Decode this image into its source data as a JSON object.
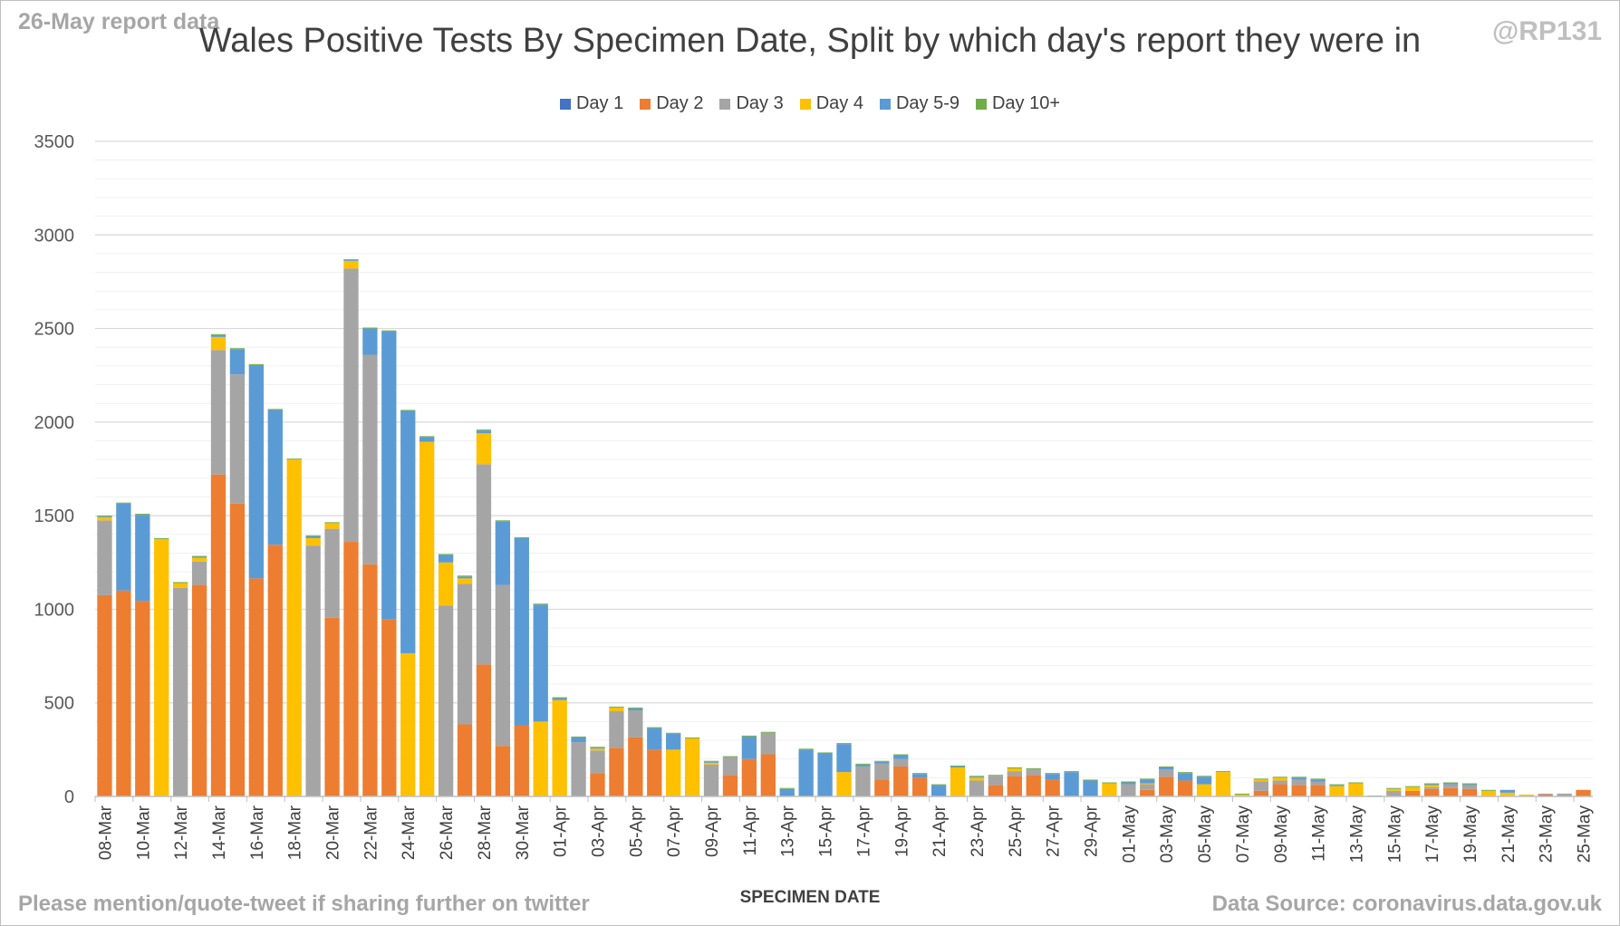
{
  "header": {
    "report_label": "26-May report data",
    "handle": "@RP131"
  },
  "footer": {
    "share_note": "Please mention/quote-tweet if sharing further on twitter",
    "source": "Data Source: coronavirus.data.gov.uk"
  },
  "chart_data": {
    "type": "bar",
    "stacked": true,
    "title": "Wales Positive Tests By Specimen Date, Split by which day's report they were in",
    "xlabel": "SPECIMEN DATE",
    "ylabel": "",
    "ylim": [
      0,
      3500
    ],
    "yticks": [
      0,
      500,
      1000,
      1500,
      2000,
      2500,
      3000,
      3500
    ],
    "grid": true,
    "legend_position": "top",
    "x_tick_labels": [
      "08-Mar",
      "10-Mar",
      "12-Mar",
      "14-Mar",
      "16-Mar",
      "18-Mar",
      "20-Mar",
      "22-Mar",
      "24-Mar",
      "26-Mar",
      "28-Mar",
      "30-Mar",
      "01-Apr",
      "03-Apr",
      "05-Apr",
      "07-Apr",
      "09-Apr",
      "11-Apr",
      "13-Apr",
      "15-Apr",
      "17-Apr",
      "19-Apr",
      "21-Apr",
      "23-Apr",
      "25-Apr",
      "27-Apr",
      "29-Apr",
      "01-May",
      "03-May",
      "05-May",
      "07-May",
      "09-May",
      "11-May",
      "13-May",
      "15-May",
      "17-May",
      "19-May",
      "21-May",
      "23-May",
      "25-May"
    ],
    "categories": [
      "08-Mar",
      "09-Mar",
      "10-Mar",
      "11-Mar",
      "12-Mar",
      "13-Mar",
      "14-Mar",
      "15-Mar",
      "16-Mar",
      "17-Mar",
      "18-Mar",
      "19-Mar",
      "20-Mar",
      "21-Mar",
      "22-Mar",
      "23-Mar",
      "24-Mar",
      "25-Mar",
      "26-Mar",
      "27-Mar",
      "28-Mar",
      "29-Mar",
      "30-Mar",
      "31-Mar",
      "01-Apr",
      "02-Apr",
      "03-Apr",
      "04-Apr",
      "05-Apr",
      "06-Apr",
      "07-Apr",
      "08-Apr",
      "09-Apr",
      "10-Apr",
      "11-Apr",
      "12-Apr",
      "13-Apr",
      "14-Apr",
      "15-Apr",
      "16-Apr",
      "17-Apr",
      "18-Apr",
      "19-Apr",
      "20-Apr",
      "21-Apr",
      "22-Apr",
      "23-Apr",
      "24-Apr",
      "25-Apr",
      "26-Apr",
      "27-Apr",
      "28-Apr",
      "29-Apr",
      "30-Apr",
      "01-May",
      "02-May",
      "03-May",
      "04-May",
      "05-May",
      "06-May",
      "07-May",
      "08-May",
      "09-May",
      "10-May",
      "11-May",
      "12-May",
      "13-May",
      "14-May",
      "15-May",
      "16-May",
      "17-May",
      "18-May",
      "19-May",
      "20-May",
      "21-May",
      "22-May",
      "23-May",
      "24-May",
      "25-May"
    ],
    "series": [
      {
        "name": "Day 1",
        "color": "#4472c4",
        "values": [
          0,
          0,
          0,
          0,
          0,
          0,
          0,
          0,
          0,
          0,
          0,
          0,
          0,
          0,
          0,
          0,
          0,
          0,
          0,
          0,
          0,
          0,
          0,
          0,
          0,
          0,
          0,
          0,
          0,
          0,
          0,
          0,
          0,
          0,
          0,
          0,
          0,
          0,
          0,
          0,
          0,
          0,
          0,
          0,
          0,
          0,
          0,
          0,
          0,
          0,
          0,
          0,
          0,
          0,
          0,
          0,
          0,
          0,
          0,
          0,
          0,
          0,
          0,
          0,
          0,
          0,
          0,
          0,
          0,
          0,
          0,
          0,
          0,
          0,
          0,
          0,
          0,
          0,
          0
        ]
      },
      {
        "name": "Day 2",
        "color": "#ed7d31",
        "values": [
          1075,
          1100,
          1045,
          0,
          0,
          1130,
          1720,
          1565,
          1165,
          1345,
          0,
          0,
          955,
          1360,
          1240,
          945,
          0,
          0,
          0,
          385,
          705,
          270,
          380,
          0,
          0,
          0,
          125,
          260,
          315,
          250,
          0,
          0,
          0,
          115,
          200,
          225,
          0,
          0,
          0,
          0,
          0,
          90,
          160,
          100,
          0,
          0,
          0,
          60,
          110,
          115,
          90,
          0,
          0,
          0,
          0,
          35,
          105,
          85,
          0,
          0,
          0,
          30,
          65,
          60,
          60,
          0,
          0,
          0,
          0,
          30,
          40,
          45,
          40,
          0,
          0,
          0,
          10,
          0,
          35
        ]
      },
      {
        "name": "Day 3",
        "color": "#a5a5a5",
        "values": [
          400,
          0,
          0,
          0,
          1115,
          125,
          665,
          690,
          0,
          0,
          0,
          1340,
          475,
          1460,
          1120,
          0,
          0,
          0,
          1020,
          750,
          1070,
          860,
          0,
          0,
          0,
          290,
          120,
          195,
          145,
          0,
          0,
          0,
          170,
          95,
          0,
          115,
          0,
          0,
          0,
          0,
          160,
          85,
          40,
          0,
          0,
          0,
          85,
          50,
          25,
          30,
          0,
          0,
          0,
          0,
          65,
          30,
          40,
          0,
          0,
          0,
          0,
          50,
          20,
          30,
          20,
          0,
          0,
          0,
          30,
          0,
          10,
          20,
          20,
          0,
          0,
          0,
          5,
          15,
          0
        ]
      },
      {
        "name": "Day 4",
        "color": "#ffc000",
        "values": [
          15,
          0,
          0,
          1375,
          25,
          20,
          70,
          0,
          0,
          0,
          1800,
          40,
          30,
          40,
          0,
          0,
          765,
          1895,
          230,
          30,
          165,
          0,
          0,
          400,
          515,
          0,
          10,
          20,
          0,
          0,
          250,
          310,
          10,
          0,
          0,
          0,
          0,
          0,
          0,
          130,
          0,
          0,
          0,
          0,
          0,
          155,
          15,
          0,
          15,
          0,
          0,
          0,
          0,
          70,
          0,
          5,
          0,
          0,
          65,
          130,
          10,
          10,
          15,
          0,
          0,
          55,
          70,
          0,
          10,
          20,
          10,
          0,
          0,
          30,
          20,
          10,
          0,
          0,
          0
        ]
      },
      {
        "name": "Day 5-9",
        "color": "#5b9bd5",
        "values": [
          5,
          465,
          460,
          0,
          0,
          5,
          10,
          135,
          1140,
          720,
          0,
          10,
          0,
          5,
          140,
          1540,
          1295,
          25,
          40,
          10,
          15,
          340,
          1000,
          625,
          10,
          25,
          5,
          0,
          10,
          115,
          85,
          0,
          5,
          0,
          120,
          0,
          40,
          250,
          230,
          150,
          10,
          10,
          20,
          20,
          60,
          5,
          5,
          0,
          0,
          0,
          30,
          130,
          85,
          0,
          10,
          20,
          10,
          40,
          40,
          0,
          0,
          0,
          0,
          10,
          10,
          5,
          0,
          0,
          0,
          0,
          5,
          5,
          5,
          0,
          15,
          0,
          0,
          0,
          0
        ]
      },
      {
        "name": "Day 10+",
        "color": "#70ad47",
        "values": [
          5,
          5,
          5,
          5,
          5,
          5,
          5,
          5,
          5,
          5,
          5,
          5,
          5,
          5,
          5,
          5,
          5,
          5,
          5,
          5,
          5,
          5,
          5,
          5,
          5,
          5,
          5,
          5,
          5,
          5,
          5,
          5,
          5,
          5,
          5,
          5,
          5,
          5,
          5,
          5,
          5,
          5,
          5,
          5,
          5,
          5,
          5,
          5,
          5,
          5,
          5,
          5,
          5,
          5,
          5,
          5,
          5,
          5,
          5,
          5,
          5,
          5,
          5,
          5,
          5,
          5,
          5,
          5,
          5,
          5,
          5,
          5,
          5,
          5,
          0,
          0,
          0,
          0,
          0
        ]
      }
    ]
  }
}
